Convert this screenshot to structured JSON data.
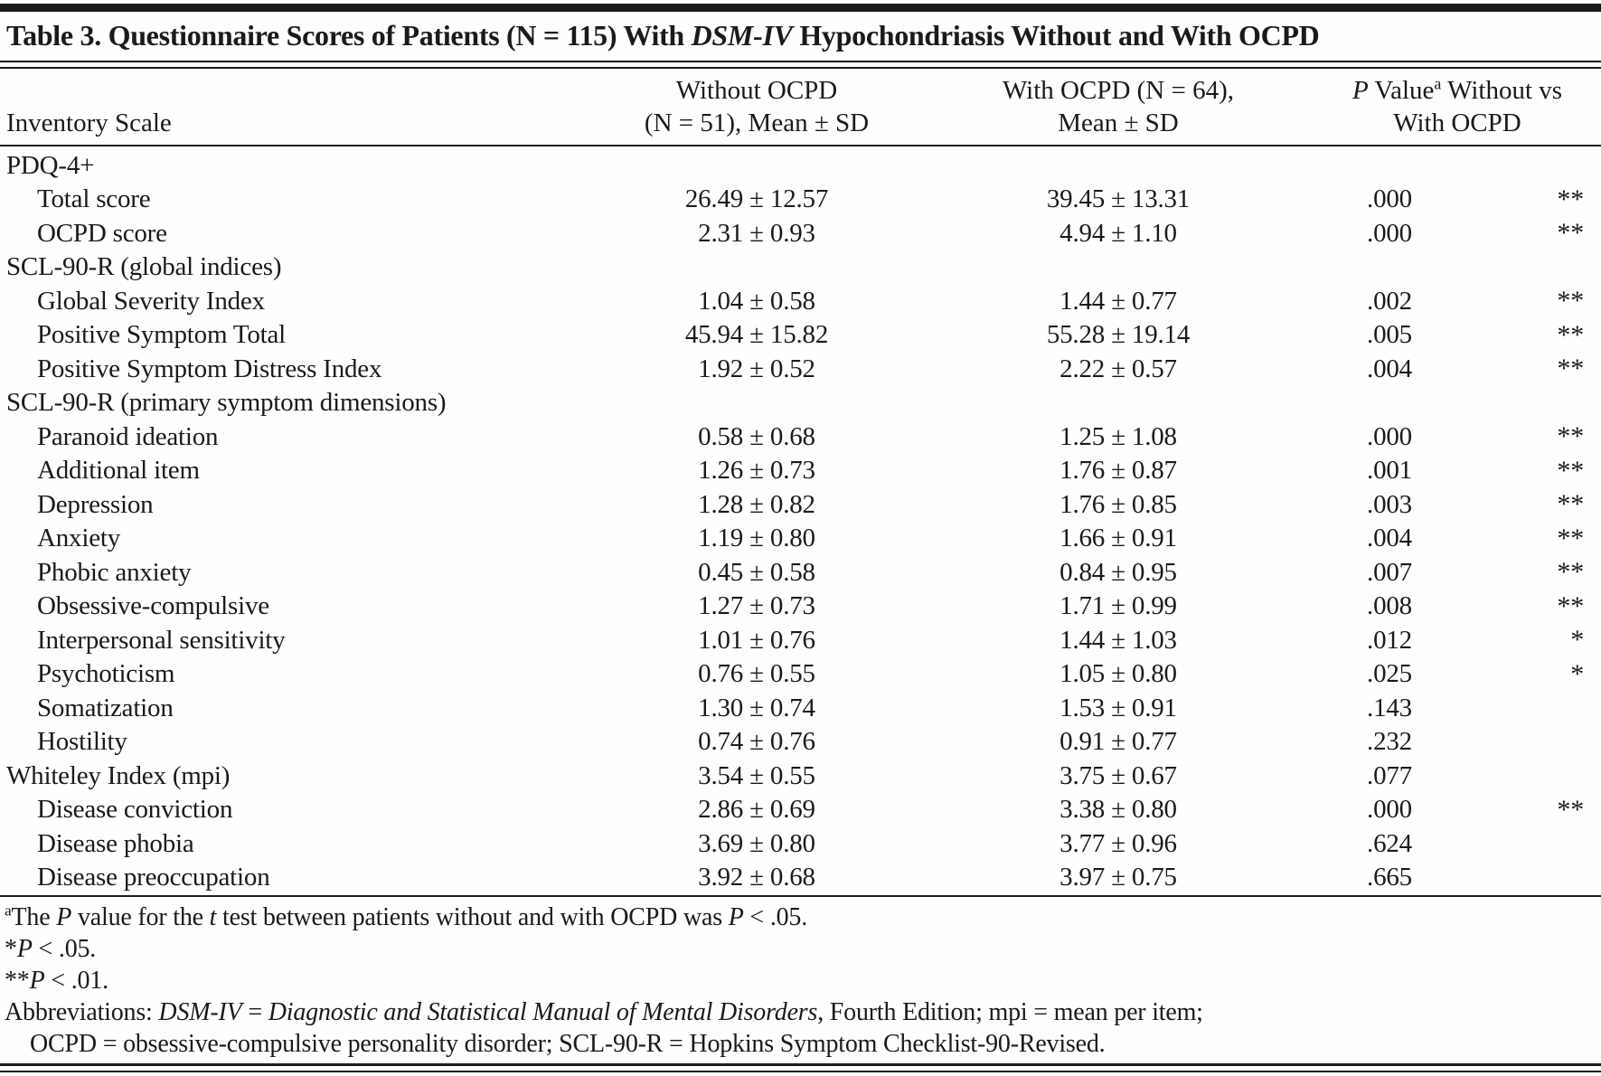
{
  "title": {
    "prefix": "Table 3. Questionnaire Scores of Patients (N = 115) With ",
    "emphasis": "DSM-IV",
    "suffix": " Hypochondriasis Without and With OCPD"
  },
  "header": {
    "col1": "Inventory Scale",
    "col2_line1": "Without OCPD",
    "col2_line2": "(N = 51), Mean ± SD",
    "col3_line1": "With OCPD (N = 64),",
    "col3_line2": "Mean ± SD",
    "col4_p_italic": "P",
    "col4_after_p": " Value",
    "col4_sup": "a",
    "col4_rest": " Without vs",
    "col4_line2": "With OCPD"
  },
  "table": {
    "rows": [
      {
        "label": "PDQ-4+",
        "without": "",
        "with": "",
        "p": "",
        "sig": ""
      },
      {
        "label": "Total score",
        "without": "26.49 ± 12.57",
        "with": "39.45 ± 13.31",
        "p": ".000",
        "sig": "**"
      },
      {
        "label": "OCPD score",
        "without": "2.31 ± 0.93",
        "with": "4.94 ± 1.10",
        "p": ".000",
        "sig": "**"
      },
      {
        "label": "SCL-90-R (global indices)",
        "without": "",
        "with": "",
        "p": "",
        "sig": ""
      },
      {
        "label": "Global Severity Index",
        "without": "1.04 ± 0.58",
        "with": "1.44 ± 0.77",
        "p": ".002",
        "sig": "**"
      },
      {
        "label": "Positive Symptom Total",
        "without": "45.94 ± 15.82",
        "with": "55.28 ± 19.14",
        "p": ".005",
        "sig": "**"
      },
      {
        "label": "Positive Symptom Distress Index",
        "without": "1.92 ± 0.52",
        "with": "2.22 ± 0.57",
        "p": ".004",
        "sig": "**"
      },
      {
        "label": "SCL-90-R (primary symptom dimensions)",
        "without": "",
        "with": "",
        "p": "",
        "sig": ""
      },
      {
        "label": "Paranoid ideation",
        "without": "0.58 ± 0.68",
        "with": "1.25 ± 1.08",
        "p": ".000",
        "sig": "**"
      },
      {
        "label": "Additional item",
        "without": "1.26 ± 0.73",
        "with": "1.76 ± 0.87",
        "p": ".001",
        "sig": "**"
      },
      {
        "label": "Depression",
        "without": "1.28 ± 0.82",
        "with": "1.76 ± 0.85",
        "p": ".003",
        "sig": "**"
      },
      {
        "label": "Anxiety",
        "without": "1.19 ± 0.80",
        "with": "1.66 ± 0.91",
        "p": ".004",
        "sig": "**"
      },
      {
        "label": "Phobic anxiety",
        "without": "0.45 ± 0.58",
        "with": "0.84 ± 0.95",
        "p": ".007",
        "sig": "**"
      },
      {
        "label": "Obsessive-compulsive",
        "without": "1.27 ± 0.73",
        "with": "1.71 ± 0.99",
        "p": ".008",
        "sig": "**"
      },
      {
        "label": "Interpersonal sensitivity",
        "without": "1.01 ± 0.76",
        "with": "1.44 ± 1.03",
        "p": ".012",
        "sig": "*"
      },
      {
        "label": "Psychoticism",
        "without": "0.76 ± 0.55",
        "with": "1.05 ± 0.80",
        "p": ".025",
        "sig": "*"
      },
      {
        "label": "Somatization",
        "without": "1.30 ± 0.74",
        "with": "1.53 ± 0.91",
        "p": ".143",
        "sig": ""
      },
      {
        "label": "Hostility",
        "without": "0.74 ± 0.76",
        "with": "0.91 ± 0.77",
        "p": ".232",
        "sig": ""
      },
      {
        "label": "Whiteley Index (mpi)",
        "without": "3.54 ± 0.55",
        "with": "3.75 ± 0.67",
        "p": ".077",
        "sig": ""
      },
      {
        "label": "Disease conviction",
        "without": "2.86 ± 0.69",
        "with": "3.38 ± 0.80",
        "p": ".000",
        "sig": "**"
      },
      {
        "label": "Disease phobia",
        "without": "3.69 ± 0.80",
        "with": "3.77 ± 0.96",
        "p": ".624",
        "sig": ""
      },
      {
        "label": "Disease preoccupation",
        "without": "3.92 ± 0.68",
        "with": "3.97 ± 0.75",
        "p": ".665",
        "sig": ""
      }
    ]
  },
  "footnotes": {
    "a_sup": "a",
    "a_parts": [
      "The ",
      "P",
      " value for the ",
      "t",
      " test between patients without and with OCPD was ",
      "P",
      " < .05."
    ],
    "star1_marker": "*",
    "star1_p": "P",
    "star1_rest": " < .05.",
    "star2_marker": "**",
    "star2_p": "P",
    "star2_rest": " < .01.",
    "abbrev_prefix": "Abbreviations: ",
    "abbrev_dsm": "DSM-IV",
    "abbrev_eq": " = ",
    "abbrev_manual": "Diagnostic and Statistical Manual of Mental Disorders",
    "abbrev_mid": ", Fourth Edition; mpi = mean per item;",
    "abbrev_line2": "OCPD = obsessive-compulsive personality disorder; SCL-90-R = Hopkins Symptom Checklist-90-Revised."
  }
}
